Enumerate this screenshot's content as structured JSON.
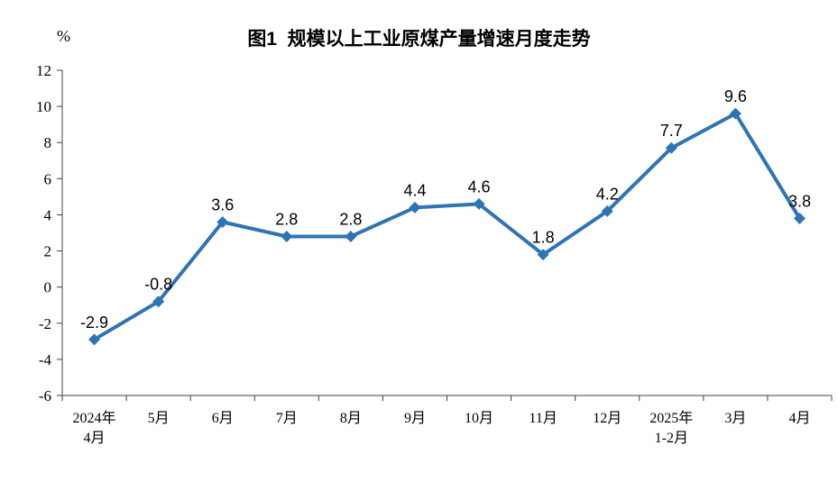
{
  "page": {
    "background": "#ffffff"
  },
  "chart_data": {
    "type": "line",
    "title": "图1  规模以上工业原煤产量增速月度走势",
    "unit_label": "%",
    "categories": [
      [
        "2024年",
        "4月"
      ],
      [
        "5月"
      ],
      [
        "6月"
      ],
      [
        "7月"
      ],
      [
        "8月"
      ],
      [
        "9月"
      ],
      [
        "10月"
      ],
      [
        "11月"
      ],
      [
        "12月"
      ],
      [
        "2025年",
        "1-2月"
      ],
      [
        "3月"
      ],
      [
        "4月"
      ]
    ],
    "values": [
      -2.9,
      -0.8,
      3.6,
      2.8,
      2.8,
      4.4,
      4.6,
      1.8,
      4.2,
      7.7,
      9.6,
      3.8
    ],
    "data_labels": [
      "-2.9",
      "-0.8",
      "3.6",
      "2.8",
      "2.8",
      "4.4",
      "4.6",
      "1.8",
      "4.2",
      "7.7",
      "9.6",
      "3.8"
    ],
    "y_axis": {
      "min": -6,
      "max": 12,
      "step": 2,
      "tick_labels": [
        "12",
        "10",
        "8",
        "6",
        "4",
        "2",
        "0",
        "-2",
        "-4",
        "-6"
      ]
    },
    "line_color": "#2E74B5",
    "axis_color": "#404040",
    "marker": "diamond",
    "grid": "off",
    "legend": "none"
  }
}
